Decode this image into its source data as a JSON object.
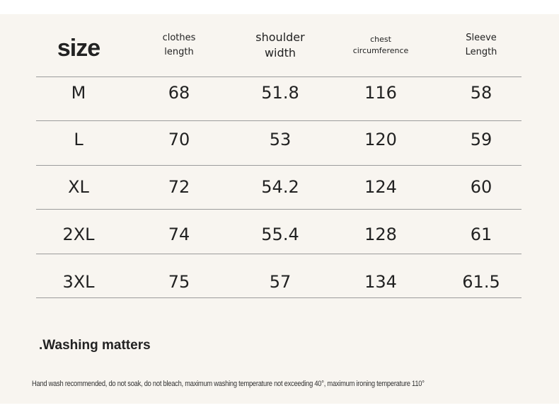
{
  "header": {
    "size": "size",
    "columns": [
      {
        "line1": "clothes",
        "line2": "length"
      },
      {
        "line1": "shoulder",
        "line2": "width"
      },
      {
        "line1": "chest",
        "line2": "circumference"
      },
      {
        "line1": "Sleeve",
        "line2": "Length"
      }
    ]
  },
  "rows": [
    {
      "size": "M",
      "length": "68",
      "shoulder": "51.8",
      "chest": "116",
      "sleeve": "58"
    },
    {
      "size": "L",
      "length": "70",
      "shoulder": "53",
      "chest": "120",
      "sleeve": "59"
    },
    {
      "size": "XL",
      "length": "72",
      "shoulder": "54.2",
      "chest": "124",
      "sleeve": "60"
    },
    {
      "size": "2XL",
      "length": "74",
      "shoulder": "55.4",
      "chest": "128",
      "sleeve": "61"
    },
    {
      "size": "3XL",
      "length": "75",
      "shoulder": "57",
      "chest": "134",
      "sleeve": "61.5"
    }
  ],
  "washing": {
    "title": ".Washing matters",
    "note": "Hand wash recommended, do not soak, do not bleach, maximum washing temperature not exceeding 40°, maximum ironing temperature 110°"
  }
}
